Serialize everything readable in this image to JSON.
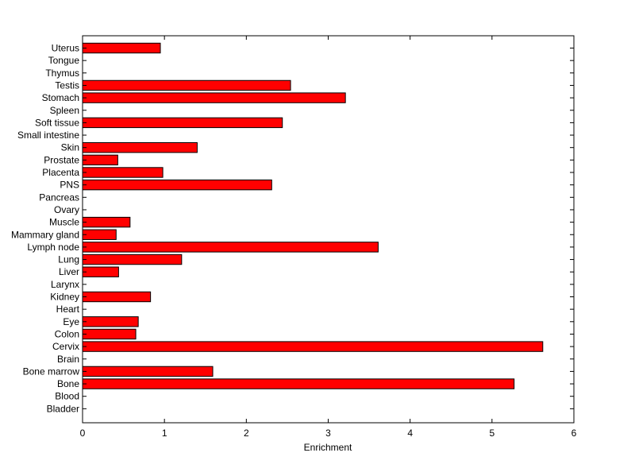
{
  "chart_data": {
    "type": "bar",
    "orientation": "horizontal",
    "title": "",
    "xlabel": "Enrichment",
    "ylabel": "",
    "xlim": [
      0,
      6
    ],
    "xticks": [
      0,
      1,
      2,
      3,
      4,
      5,
      6
    ],
    "bar_color": "#ff0000",
    "edge_color": "#000000",
    "grid": false,
    "categories": [
      "Uterus",
      "Tongue",
      "Thymus",
      "Testis",
      "Stomach",
      "Spleen",
      "Soft tissue",
      "Small intestine",
      "Skin",
      "Prostate",
      "Placenta",
      "PNS",
      "Pancreas",
      "Ovary",
      "Muscle",
      "Mammary gland",
      "Lymph node",
      "Lung",
      "Liver",
      "Larynx",
      "Kidney",
      "Heart",
      "Eye",
      "Colon",
      "Cervix",
      "Brain",
      "Bone marrow",
      "Bone",
      "Blood",
      "Bladder"
    ],
    "values": [
      0.95,
      0,
      0,
      2.54,
      3.21,
      0,
      2.44,
      0,
      1.4,
      0.43,
      0.98,
      2.31,
      0,
      0,
      0.58,
      0.41,
      3.61,
      1.21,
      0.44,
      0,
      0.83,
      0,
      0.68,
      0.65,
      5.62,
      0,
      1.59,
      5.27,
      0,
      0
    ]
  }
}
